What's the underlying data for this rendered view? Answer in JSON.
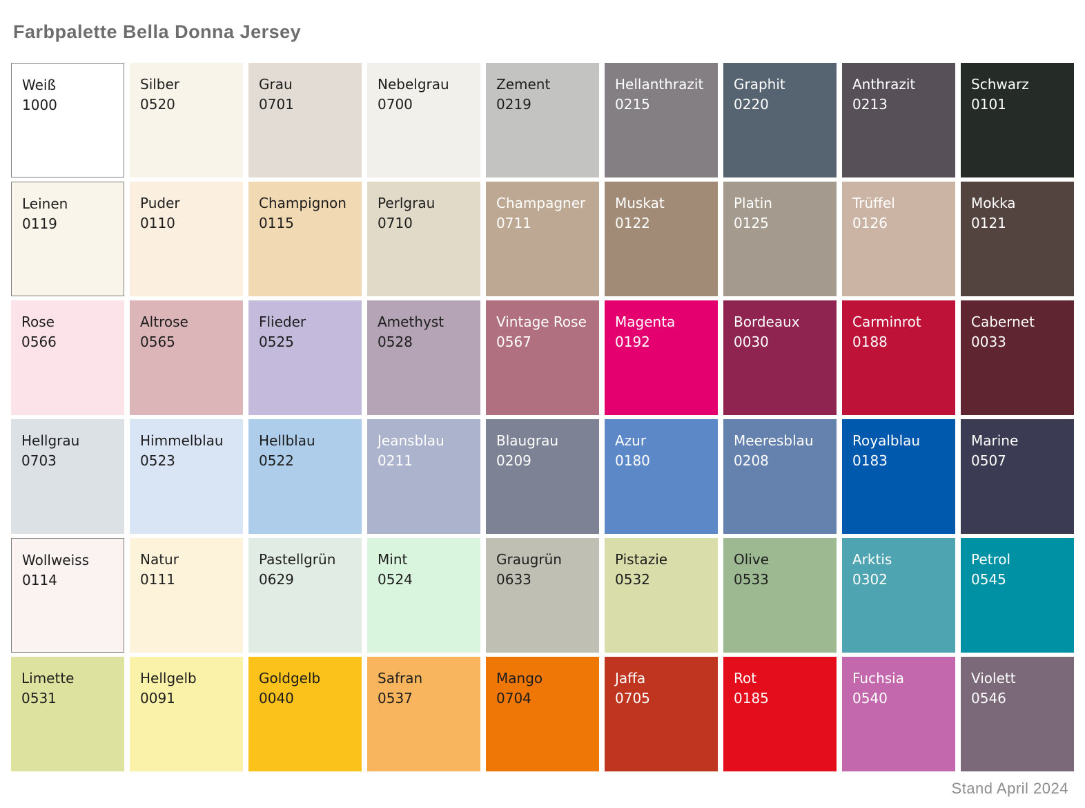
{
  "title": "Farbpalette Bella Donna Jersey",
  "footer": "Stand April 2024",
  "colors": {
    "title_text": "#6d6d6d",
    "footer_text": "#8d8d8d",
    "swatch_border": "#7c7c7c"
  },
  "palette": {
    "columns": 9,
    "swatches": [
      {
        "name": "Weiß",
        "code": "1000",
        "bg": "#ffffff",
        "fg": "#1d1d1d",
        "border": true
      },
      {
        "name": "Silber",
        "code": "0520",
        "bg": "#f8f4e9",
        "fg": "#1d1d1d",
        "border": false
      },
      {
        "name": "Grau",
        "code": "0701",
        "bg": "#e2dcd5",
        "fg": "#1d1d1d",
        "border": false
      },
      {
        "name": "Nebelgrau",
        "code": "0700",
        "bg": "#f2f0ea",
        "fg": "#1d1d1d",
        "border": false
      },
      {
        "name": "Zement",
        "code": "0219",
        "bg": "#c3c3c1",
        "fg": "#1d1d1d",
        "border": false
      },
      {
        "name": "Hellanthrazit",
        "code": "0215",
        "bg": "#847f82",
        "fg": "#ffffff",
        "border": false
      },
      {
        "name": "Graphit",
        "code": "0220",
        "bg": "#566471",
        "fg": "#ffffff",
        "border": false
      },
      {
        "name": "Anthrazit",
        "code": "0213",
        "bg": "#575059",
        "fg": "#ffffff",
        "border": false
      },
      {
        "name": "Schwarz",
        "code": "0101",
        "bg": "#252c28",
        "fg": "#ffffff",
        "border": false
      },
      {
        "name": "Leinen",
        "code": "0119",
        "bg": "#faf5eb",
        "fg": "#1d1d1d",
        "border": true
      },
      {
        "name": "Puder",
        "code": "0110",
        "bg": "#fbefdf",
        "fg": "#1d1d1d",
        "border": false
      },
      {
        "name": "Champignon",
        "code": "0115",
        "bg": "#f1dab3",
        "fg": "#1d1d1d",
        "border": false
      },
      {
        "name": "Perlgrau",
        "code": "0710",
        "bg": "#e2dac9",
        "fg": "#1d1d1d",
        "border": false
      },
      {
        "name": "Champagner",
        "code": "0711",
        "bg": "#bda893",
        "fg": "#ffffff",
        "border": false
      },
      {
        "name": "Muskat",
        "code": "0122",
        "bg": "#a18b77",
        "fg": "#ffffff",
        "border": false
      },
      {
        "name": "Platin",
        "code": "0125",
        "bg": "#a49b8e",
        "fg": "#ffffff",
        "border": false
      },
      {
        "name": "Trüffel",
        "code": "0126",
        "bg": "#ccb4a5",
        "fg": "#ffffff",
        "border": false
      },
      {
        "name": "Mokka",
        "code": "0121",
        "bg": "#544440",
        "fg": "#ffffff",
        "border": false
      },
      {
        "name": "Rose",
        "code": "0566",
        "bg": "#fce3ea",
        "fg": "#1d1d1d",
        "border": false
      },
      {
        "name": "Altrose",
        "code": "0565",
        "bg": "#dcb5b9",
        "fg": "#1d1d1d",
        "border": false
      },
      {
        "name": "Flieder",
        "code": "0525",
        "bg": "#c4bbdc",
        "fg": "#1d1d1d",
        "border": false
      },
      {
        "name": "Amethyst",
        "code": "0528",
        "bg": "#b4a4b6",
        "fg": "#1d1d1d",
        "border": false
      },
      {
        "name": "Vintage Rose",
        "code": "0567",
        "bg": "#b1707f",
        "fg": "#ffffff",
        "border": false
      },
      {
        "name": "Magenta",
        "code": "0192",
        "bg": "#e4006e",
        "fg": "#ffffff",
        "border": false
      },
      {
        "name": "Bordeaux",
        "code": "0030",
        "bg": "#8f2450",
        "fg": "#ffffff",
        "border": false
      },
      {
        "name": "Carminrot",
        "code": "0188",
        "bg": "#be1238",
        "fg": "#ffffff",
        "border": false
      },
      {
        "name": "Cabernet",
        "code": "0033",
        "bg": "#5f2530",
        "fg": "#ffffff",
        "border": false
      },
      {
        "name": "Hellgrau",
        "code": "0703",
        "bg": "#dce1e6",
        "fg": "#1d1d1d",
        "border": false
      },
      {
        "name": "Himmelblau",
        "code": "0523",
        "bg": "#d9e4f4",
        "fg": "#1d1d1d",
        "border": false
      },
      {
        "name": "Hellblau",
        "code": "0522",
        "bg": "#aecdeb",
        "fg": "#1d1d1d",
        "border": false
      },
      {
        "name": "Jeansblau",
        "code": "0211",
        "bg": "#abb3cd",
        "fg": "#ffffff",
        "border": false
      },
      {
        "name": "Blaugrau",
        "code": "0209",
        "bg": "#7d8295",
        "fg": "#ffffff",
        "border": false
      },
      {
        "name": "Azur",
        "code": "0180",
        "bg": "#5c88c7",
        "fg": "#ffffff",
        "border": false
      },
      {
        "name": "Meeresblau",
        "code": "0208",
        "bg": "#6581ae",
        "fg": "#ffffff",
        "border": false
      },
      {
        "name": "Royalblau",
        "code": "0183",
        "bg": "#0059ad",
        "fg": "#ffffff",
        "border": false
      },
      {
        "name": "Marine",
        "code": "0507",
        "bg": "#3b3b53",
        "fg": "#ffffff",
        "border": false
      },
      {
        "name": "Wollweiss",
        "code": "0114",
        "bg": "#fbf2f2",
        "fg": "#1d1d1d",
        "border": true
      },
      {
        "name": "Natur",
        "code": "0111",
        "bg": "#fcf3da",
        "fg": "#1d1d1d",
        "border": false
      },
      {
        "name": "Pastellgrün",
        "code": "0629",
        "bg": "#e1ede4",
        "fg": "#1d1d1d",
        "border": false
      },
      {
        "name": "Mint",
        "code": "0524",
        "bg": "#d9f5dd",
        "fg": "#1d1d1d",
        "border": false
      },
      {
        "name": "Graugrün",
        "code": "0633",
        "bg": "#bfbfb3",
        "fg": "#1d1d1d",
        "border": false
      },
      {
        "name": "Pistazie",
        "code": "0532",
        "bg": "#d9dda9",
        "fg": "#1d1d1d",
        "border": false
      },
      {
        "name": "Olive",
        "code": "0533",
        "bg": "#9db991",
        "fg": "#1d1d1d",
        "border": false
      },
      {
        "name": "Arktis",
        "code": "0302",
        "bg": "#4fa4b1",
        "fg": "#ffffff",
        "border": false
      },
      {
        "name": "Petrol",
        "code": "0545",
        "bg": "#0091a5",
        "fg": "#ffffff",
        "border": false
      },
      {
        "name": "Limette",
        "code": "0531",
        "bg": "#dee29f",
        "fg": "#1d1d1d",
        "border": false
      },
      {
        "name": "Hellgelb",
        "code": "0091",
        "bg": "#fbf2a9",
        "fg": "#1d1d1d",
        "border": false
      },
      {
        "name": "Goldgelb",
        "code": "0040",
        "bg": "#fbc21c",
        "fg": "#1d1d1d",
        "border": false
      },
      {
        "name": "Safran",
        "code": "0537",
        "bg": "#f8b55d",
        "fg": "#1d1d1d",
        "border": false
      },
      {
        "name": "Mango",
        "code": "0704",
        "bg": "#ee7706",
        "fg": "#1d1d1d",
        "border": false
      },
      {
        "name": "Jaffa",
        "code": "0705",
        "bg": "#bf3520",
        "fg": "#ffffff",
        "border": false
      },
      {
        "name": "Rot",
        "code": "0185",
        "bg": "#e30d1c",
        "fg": "#ffffff",
        "border": false
      },
      {
        "name": "Fuchsia",
        "code": "0540",
        "bg": "#c368ad",
        "fg": "#ffffff",
        "border": false
      },
      {
        "name": "Violett",
        "code": "0546",
        "bg": "#7b6879",
        "fg": "#ffffff",
        "border": false
      }
    ]
  }
}
